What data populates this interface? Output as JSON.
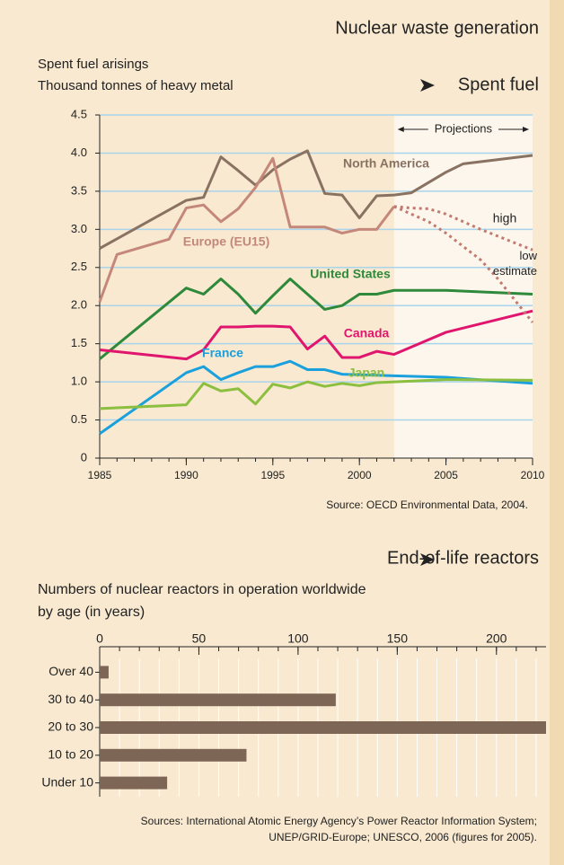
{
  "header": {
    "title": "Nuclear waste generation"
  },
  "chart_data": [
    {
      "type": "line",
      "title": "Spent fuel",
      "subtitle": [
        "Spent fuel arisings",
        "Thousand tonnes of heavy metal"
      ],
      "annotation": "Projections",
      "projection_range": [
        2002,
        2010
      ],
      "source": "Source: OECD Environmental Data, 2004.",
      "xlim": [
        1985,
        2010
      ],
      "xticks": [
        1985,
        1990,
        1995,
        2000,
        2005,
        2010
      ],
      "ylim": [
        0,
        4.5
      ],
      "yticks": [
        0,
        0.5,
        {
          "value": 1,
          "label": "1.0"
        },
        1.5,
        {
          "value": 2,
          "label": "2.0"
        },
        2.5,
        {
          "value": 3,
          "label": "3.0"
        },
        3.5,
        {
          "value": 4,
          "label": "4.0"
        },
        4.5
      ],
      "grid": true,
      "series": [
        {
          "name": "North America",
          "color": "#8a7262",
          "style": "solid",
          "x": [
            1985,
            1990,
            1991,
            1992,
            1993,
            1994,
            1995,
            1996,
            1997,
            1998,
            1999,
            2000,
            2001,
            2002,
            2003,
            2005,
            2006,
            2010
          ],
          "values": [
            2.75,
            3.38,
            3.42,
            3.95,
            3.77,
            3.58,
            3.78,
            3.92,
            4.03,
            3.47,
            3.45,
            3.15,
            3.44,
            3.45,
            3.48,
            3.75,
            3.86,
            3.97
          ]
        },
        {
          "name": "Europe (EU15)",
          "color": "#c4877a",
          "style": "solid",
          "x": [
            1985,
            1986,
            1989,
            1990,
            1991,
            1992,
            1993,
            1994,
            1995,
            1996,
            1997,
            1998,
            1999,
            2000,
            2001,
            2002
          ],
          "values": [
            2.05,
            2.67,
            2.87,
            3.28,
            3.32,
            3.1,
            3.27,
            3.55,
            3.93,
            3.03,
            3.03,
            3.03,
            2.95,
            3.0,
            3.0,
            3.3
          ]
        },
        {
          "name": "United States",
          "color": "#2e8a3a",
          "style": "solid",
          "x": [
            1985,
            1990,
            1991,
            1992,
            1993,
            1994,
            1995,
            1996,
            1997,
            1998,
            1999,
            2000,
            2001,
            2002,
            2005,
            2010
          ],
          "values": [
            1.3,
            2.23,
            2.15,
            2.35,
            2.15,
            1.9,
            2.13,
            2.35,
            2.15,
            1.95,
            2.0,
            2.15,
            2.15,
            2.2,
            2.2,
            2.15
          ]
        },
        {
          "name": "Canada",
          "color": "#e0166e",
          "style": "solid",
          "x": [
            1985,
            1990,
            1991,
            1992,
            1993,
            1994,
            1995,
            1996,
            1997,
            1998,
            1999,
            2000,
            2001,
            2002,
            2005,
            2010
          ],
          "values": [
            1.42,
            1.3,
            1.42,
            1.72,
            1.72,
            1.73,
            1.73,
            1.72,
            1.43,
            1.6,
            1.32,
            1.32,
            1.4,
            1.36,
            1.65,
            1.93
          ]
        },
        {
          "name": "France",
          "color": "#1aa0dc",
          "style": "solid",
          "x": [
            1985,
            1990,
            1991,
            1992,
            1993,
            1994,
            1995,
            1996,
            1997,
            1998,
            1999,
            2002,
            2005,
            2010
          ],
          "values": [
            0.32,
            1.12,
            1.2,
            1.03,
            1.12,
            1.2,
            1.2,
            1.27,
            1.16,
            1.16,
            1.1,
            1.08,
            1.06,
            0.98
          ]
        },
        {
          "name": "Japan",
          "color": "#8cbf3f",
          "style": "solid",
          "x": [
            1985,
            1990,
            1991,
            1992,
            1993,
            1994,
            1995,
            1996,
            1997,
            1998,
            1999,
            2000,
            2001,
            2002,
            2005,
            2010
          ],
          "values": [
            0.65,
            0.7,
            0.98,
            0.88,
            0.91,
            0.71,
            0.97,
            0.92,
            1.0,
            0.94,
            0.98,
            0.95,
            0.99,
            1.0,
            1.03,
            1.02
          ]
        },
        {
          "name": "high",
          "color": "#c27a6e",
          "style": "dashed",
          "x": [
            2002,
            2003,
            2004,
            2005,
            2007,
            2010
          ],
          "values": [
            3.3,
            3.28,
            3.27,
            3.2,
            3.0,
            2.73
          ]
        },
        {
          "name": "low estimate",
          "color": "#c27a6e",
          "style": "dashed",
          "x": [
            2002,
            2004,
            2005,
            2007,
            2008,
            2010
          ],
          "values": [
            3.3,
            3.1,
            2.95,
            2.6,
            2.35,
            1.78
          ]
        }
      ]
    },
    {
      "type": "hbar",
      "title": "End-of-life reactors",
      "subtitle": [
        "Numbers of nuclear reactors in operation worldwide",
        "by age (in years)"
      ],
      "source": [
        "Sources: International Atomic Energy Agency’s Power Reactor Information System;",
        "UNEP/GRID-Europe; UNESCO, 2006 (figures for 2005)."
      ],
      "categories": [
        "Over 40",
        "30 to 40",
        "20 to 30",
        "10 to 20",
        "Under 10"
      ],
      "values": [
        4.5,
        119,
        225,
        74,
        34
      ],
      "color": "#7d6656",
      "xlim": [
        0,
        225
      ],
      "xticks": [
        0,
        50,
        100,
        150,
        200
      ]
    }
  ]
}
